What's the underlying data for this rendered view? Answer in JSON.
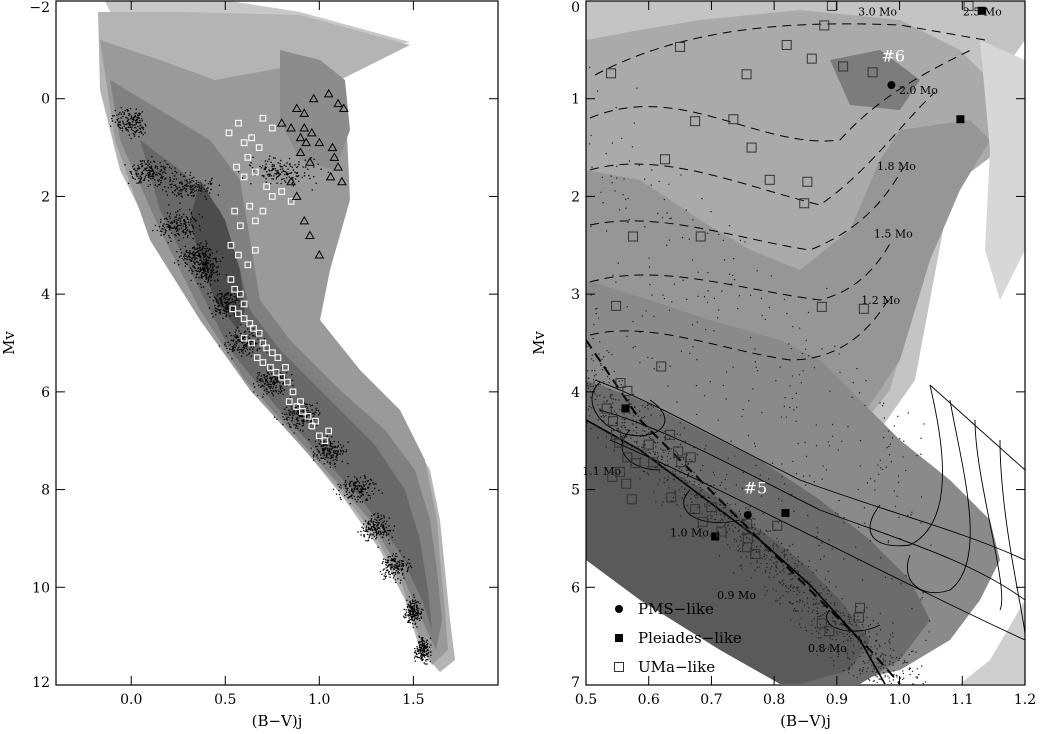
{
  "chart_data": [
    {
      "type": "scatter",
      "panel": "left",
      "xlabel": "(B−V)j",
      "ylabel": "Mv",
      "xlim": [
        -0.4,
        1.95
      ],
      "ylim": [
        12.0,
        -2.0
      ],
      "xticks": [
        0.0,
        0.5,
        1.0,
        1.5
      ],
      "xtick_labels": [
        "0.0",
        "0.5",
        "1.0",
        "1.5"
      ],
      "yticks": [
        -2,
        0,
        2,
        4,
        6,
        8,
        10,
        12
      ],
      "ytick_labels": [
        "−2",
        "0",
        "2",
        "4",
        "6",
        "8",
        "10",
        "12"
      ],
      "series": [
        {
          "marker": "open-square-white",
          "points": [
            [
              0.52,
              0.7
            ],
            [
              0.57,
              0.5
            ],
            [
              0.6,
              0.9
            ],
            [
              0.62,
              1.2
            ],
            [
              0.64,
              0.8
            ],
            [
              0.56,
              1.4
            ],
            [
              0.6,
              1.6
            ],
            [
              0.66,
              1.5
            ],
            [
              0.72,
              1.8
            ],
            [
              0.75,
              2.0
            ],
            [
              0.63,
              2.2
            ],
            [
              0.55,
              2.3
            ],
            [
              0.58,
              2.6
            ],
            [
              0.66,
              2.5
            ],
            [
              0.7,
              2.3
            ],
            [
              0.8,
              1.9
            ],
            [
              0.85,
              2.1
            ],
            [
              0.53,
              3.0
            ],
            [
              0.57,
              3.2
            ],
            [
              0.62,
              3.4
            ],
            [
              0.66,
              3.1
            ],
            [
              0.53,
              3.7
            ],
            [
              0.55,
              3.9
            ],
            [
              0.58,
              4.0
            ],
            [
              0.6,
              4.2
            ],
            [
              0.54,
              4.3
            ],
            [
              0.57,
              4.4
            ],
            [
              0.6,
              4.5
            ],
            [
              0.63,
              4.6
            ],
            [
              0.65,
              4.7
            ],
            [
              0.68,
              4.8
            ],
            [
              0.7,
              5.0
            ],
            [
              0.72,
              5.1
            ],
            [
              0.75,
              5.2
            ],
            [
              0.6,
              4.9
            ],
            [
              0.64,
              5.0
            ],
            [
              0.67,
              5.3
            ],
            [
              0.7,
              5.4
            ],
            [
              0.74,
              5.5
            ],
            [
              0.77,
              5.6
            ],
            [
              0.8,
              5.7
            ],
            [
              0.83,
              5.8
            ],
            [
              0.78,
              5.3
            ],
            [
              0.82,
              5.5
            ],
            [
              0.86,
              6.0
            ],
            [
              0.84,
              6.2
            ],
            [
              0.88,
              6.3
            ],
            [
              0.91,
              6.4
            ],
            [
              0.94,
              6.5
            ],
            [
              0.9,
              6.2
            ],
            [
              0.96,
              6.7
            ],
            [
              1.0,
              6.9
            ],
            [
              1.03,
              7.0
            ],
            [
              0.98,
              6.6
            ],
            [
              1.05,
              6.8
            ],
            [
              0.7,
              0.4
            ],
            [
              0.75,
              0.6
            ],
            [
              0.68,
              1.0
            ]
          ]
        },
        {
          "marker": "open-triangle",
          "points": [
            [
              0.88,
              0.2
            ],
            [
              0.92,
              0.3
            ],
            [
              0.97,
              0.0
            ],
            [
              1.05,
              -0.1
            ],
            [
              1.1,
              0.1
            ],
            [
              1.13,
              0.2
            ],
            [
              0.8,
              0.5
            ],
            [
              0.85,
              0.6
            ],
            [
              0.9,
              0.8
            ],
            [
              0.93,
              0.9
            ],
            [
              0.96,
              0.7
            ],
            [
              1.0,
              0.9
            ],
            [
              0.9,
              1.1
            ],
            [
              0.95,
              1.3
            ],
            [
              1.08,
              1.2
            ],
            [
              1.1,
              1.4
            ],
            [
              1.06,
              1.6
            ],
            [
              1.12,
              1.7
            ],
            [
              0.88,
              2.0
            ],
            [
              0.92,
              2.5
            ],
            [
              0.95,
              2.8
            ],
            [
              1.0,
              3.2
            ],
            [
              0.85,
              1.7
            ],
            [
              1.07,
              1.0
            ],
            [
              0.92,
              0.6
            ]
          ]
        }
      ]
    },
    {
      "type": "scatter",
      "panel": "right",
      "xlabel": "(B−V)j",
      "ylabel": "Mv",
      "xlim": [
        0.5,
        1.2
      ],
      "ylim": [
        7.0,
        0.0
      ],
      "xticks": [
        0.5,
        0.6,
        0.7,
        0.8,
        0.9,
        1.0,
        1.1,
        1.2
      ],
      "xtick_labels": [
        "0.5",
        "0.6",
        "0.7",
        "0.8",
        "0.9",
        "1.0",
        "1.1",
        "1.2"
      ],
      "yticks": [
        0,
        1,
        2,
        3,
        4,
        5,
        6,
        7
      ],
      "ytick_labels": [
        "0",
        "1",
        "2",
        "3",
        "4",
        "5",
        "6",
        "7"
      ],
      "legend": {
        "position": "bottom-left",
        "entries": [
          "PMS−like",
          "Pleiades−like",
          "UMa−like"
        ]
      },
      "star_labels": [
        {
          "text": "#6",
          "x": 0.99,
          "y": 0.62
        },
        {
          "text": "#5",
          "x": 0.77,
          "y": 5.04
        }
      ],
      "mass_track_labels": [
        {
          "text": "3.0 Mo",
          "x": 0.965,
          "y": 0.15
        },
        {
          "text": "2.5 Mo",
          "x": 1.132,
          "y": 0.15
        },
        {
          "text": "2.0 Mo",
          "x": 1.03,
          "y": 0.95
        },
        {
          "text": "1.8 Mo",
          "x": 0.995,
          "y": 1.73
        },
        {
          "text": "1.5 Mo",
          "x": 0.99,
          "y": 2.42
        },
        {
          "text": "1.2 Mo",
          "x": 0.97,
          "y": 3.1
        },
        {
          "text": "1.1 Mo",
          "x": 0.525,
          "y": 4.85
        },
        {
          "text": "1.0 Mo",
          "x": 0.665,
          "y": 5.48
        },
        {
          "text": "0.9 Mo",
          "x": 0.74,
          "y": 6.12
        },
        {
          "text": "0.8 Mo",
          "x": 0.885,
          "y": 6.66
        }
      ],
      "series": [
        {
          "name": "PMS−like",
          "marker": "filled-circle",
          "points": [
            [
              0.987,
              0.86
            ],
            [
              0.758,
              5.26
            ]
          ]
        },
        {
          "name": "Pleiades−like",
          "marker": "filled-square",
          "points": [
            [
              1.131,
              0.1
            ],
            [
              1.097,
              1.21
            ],
            [
              0.563,
              4.17
            ],
            [
              0.818,
              5.24
            ],
            [
              0.706,
              5.48
            ]
          ]
        },
        {
          "name": "UMa−like",
          "marker": "open-square",
          "points": [
            [
              0.892,
              0.05
            ],
            [
              1.11,
              0.05
            ],
            [
              0.54,
              0.74
            ],
            [
              0.65,
              0.47
            ],
            [
              0.756,
              0.75
            ],
            [
              0.82,
              0.45
            ],
            [
              0.88,
              0.25
            ],
            [
              0.86,
              0.59
            ],
            [
              0.91,
              0.67
            ],
            [
              0.957,
              0.73
            ],
            [
              0.735,
              1.21
            ],
            [
              0.674,
              1.23
            ],
            [
              0.764,
              1.5
            ],
            [
              0.626,
              1.62
            ],
            [
              0.793,
              1.83
            ],
            [
              0.853,
              1.85
            ],
            [
              0.848,
              2.07
            ],
            [
              0.683,
              2.41
            ],
            [
              0.575,
              2.41
            ],
            [
              0.548,
              3.12
            ],
            [
              0.876,
              3.13
            ],
            [
              0.943,
              3.15
            ],
            [
              0.62,
              3.74
            ],
            [
              0.533,
              4.17
            ],
            [
              0.543,
              4.3
            ],
            [
              0.548,
              4.44
            ],
            [
              0.553,
              4.52
            ],
            [
              0.566,
              4.67
            ],
            [
              0.566,
              3.99
            ],
            [
              0.555,
              3.91
            ],
            [
              0.6,
              4.54
            ],
            [
              0.634,
              4.44
            ],
            [
              0.647,
              4.61
            ],
            [
              0.652,
              4.72
            ],
            [
              0.667,
              4.67
            ],
            [
              0.607,
              4.72
            ],
            [
              0.579,
              4.73
            ],
            [
              0.554,
              4.82
            ],
            [
              0.564,
              4.94
            ],
            [
              0.573,
              5.1
            ],
            [
              0.542,
              4.87
            ],
            [
              0.636,
              5.08
            ],
            [
              0.674,
              5.2
            ],
            [
              0.7,
              5.18
            ],
            [
              0.757,
              5.35
            ],
            [
              0.758,
              5.5
            ],
            [
              0.77,
              5.66
            ],
            [
              0.805,
              5.37
            ],
            [
              0.757,
              5.59
            ],
            [
              0.686,
              5.33
            ],
            [
              0.716,
              5.43
            ],
            [
              0.937,
              6.21
            ],
            [
              0.935,
              6.31
            ],
            [
              0.888,
              6.45
            ],
            [
              0.876,
              6.37
            ]
          ]
        }
      ]
    }
  ]
}
